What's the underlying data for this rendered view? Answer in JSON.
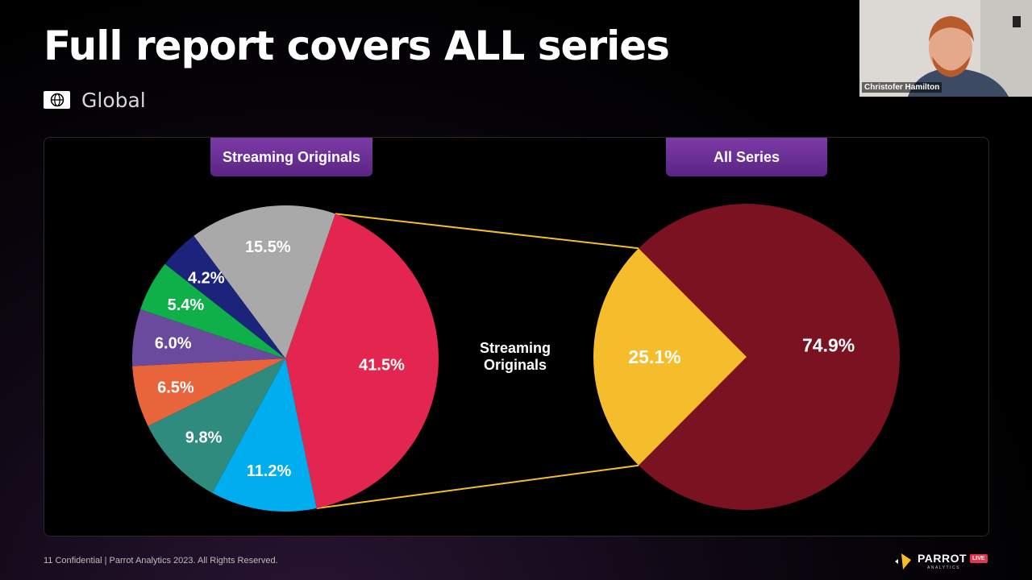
{
  "slide": {
    "title": "Full report covers ALL series",
    "region_icon": "globe-icon",
    "region_label": "Global",
    "footer": "11  Confidential  |  Parrot Analytics 2023. All Rights Reserved."
  },
  "webcam": {
    "participant_name": "Christofer Hamilton"
  },
  "logo": {
    "wordmark": "PARROT",
    "subtitle": "ANALYTICS",
    "badge": "LIVE"
  },
  "chart_data": [
    {
      "type": "pie",
      "title": "Streaming Originals",
      "slices": [
        {
          "label": "41.5%",
          "value": 41.5,
          "color": "#e2264f"
        },
        {
          "label": "11.2%",
          "value": 11.2,
          "color": "#00aeef"
        },
        {
          "label": "9.8%",
          "value": 9.8,
          "color": "#2e8b7e"
        },
        {
          "label": "6.5%",
          "value": 6.5,
          "color": "#e8643a"
        },
        {
          "label": "6.0%",
          "value": 6.0,
          "color": "#6a4a9c"
        },
        {
          "label": "5.4%",
          "value": 5.4,
          "color": "#0fb04a"
        },
        {
          "label": "4.2%",
          "value": 4.2,
          "color": "#1b237a"
        },
        {
          "label": "15.5%",
          "value": 15.5,
          "color": "#a9a9a9"
        }
      ]
    },
    {
      "type": "pie",
      "title": "All Series",
      "slices": [
        {
          "label": "Streaming Originals",
          "value": 25.1,
          "display": "25.1%",
          "color": "#f5bd2c"
        },
        {
          "label": "",
          "value": 74.9,
          "display": "74.9%",
          "color": "#7a1222"
        }
      ],
      "connector_color": "#f5bd2c"
    }
  ]
}
